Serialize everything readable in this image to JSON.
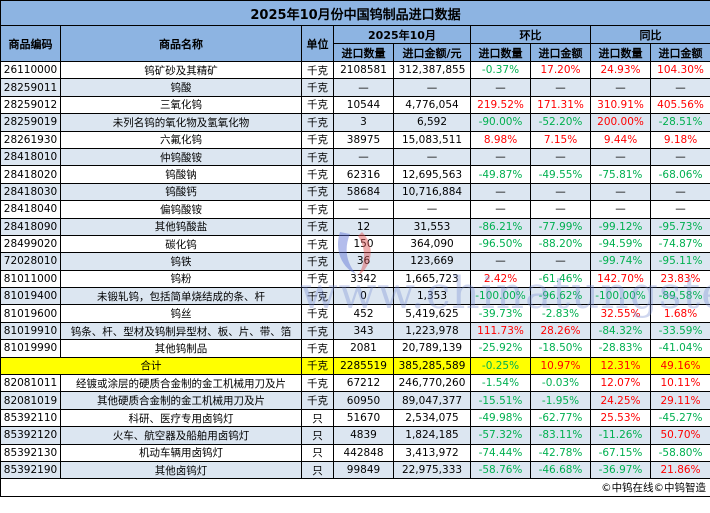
{
  "title": "2025年10月份中国钨制品进口数据",
  "headers": {
    "code": "商品编码",
    "name": "商品名称",
    "unit": "单位",
    "period": "2025年10月",
    "mom": "环比",
    "yoy": "同比",
    "qty": "进口数量",
    "amount_yuan": "进口金额/元",
    "amount": "进口金额"
  },
  "rows": [
    {
      "code": "26110000",
      "name": "钨矿砂及其精矿",
      "unit": "千克",
      "qty": "2108581",
      "amount": "312,387,855",
      "mom_qty": "-0.37%",
      "mom_amt": "17.20%",
      "yoy_qty": "24.93%",
      "yoy_amt": "104.30%"
    },
    {
      "code": "28259011",
      "name": "钨酸",
      "unit": "千克",
      "qty": "—",
      "amount": "—",
      "mom_qty": "—",
      "mom_amt": "—",
      "yoy_qty": "—",
      "yoy_amt": "—"
    },
    {
      "code": "28259012",
      "name": "三氧化钨",
      "unit": "千克",
      "qty": "10544",
      "amount": "4,776,054",
      "mom_qty": "219.52%",
      "mom_amt": "171.31%",
      "yoy_qty": "310.91%",
      "yoy_amt": "405.56%"
    },
    {
      "code": "28259019",
      "name": "未列名钨的氧化物及氢氧化物",
      "unit": "千克",
      "qty": "3",
      "amount": "6,592",
      "mom_qty": "-90.00%",
      "mom_amt": "-52.20%",
      "yoy_qty": "200.00%",
      "yoy_amt": "-28.51%"
    },
    {
      "code": "28261930",
      "name": "六氟化钨",
      "unit": "千克",
      "qty": "38975",
      "amount": "15,083,511",
      "mom_qty": "8.98%",
      "mom_amt": "7.15%",
      "yoy_qty": "9.44%",
      "yoy_amt": "9.18%"
    },
    {
      "code": "28418010",
      "name": "仲钨酸铵",
      "unit": "千克",
      "qty": "—",
      "amount": "—",
      "mom_qty": "—",
      "mom_amt": "—",
      "yoy_qty": "—",
      "yoy_amt": "—"
    },
    {
      "code": "28418020",
      "name": "钨酸钠",
      "unit": "千克",
      "qty": "62316",
      "amount": "12,695,563",
      "mom_qty": "-49.87%",
      "mom_amt": "-49.55%",
      "yoy_qty": "-75.81%",
      "yoy_amt": "-68.06%"
    },
    {
      "code": "28418030",
      "name": "钨酸钙",
      "unit": "千克",
      "qty": "58684",
      "amount": "10,716,884",
      "mom_qty": "—",
      "mom_amt": "—",
      "yoy_qty": "—",
      "yoy_amt": "—"
    },
    {
      "code": "28418040",
      "name": "偏钨酸铵",
      "unit": "千克",
      "qty": "—",
      "amount": "—",
      "mom_qty": "—",
      "mom_amt": "—",
      "yoy_qty": "—",
      "yoy_amt": "—"
    },
    {
      "code": "28418090",
      "name": "其他钨酸盐",
      "unit": "千克",
      "qty": "12",
      "amount": "31,553",
      "mom_qty": "-86.21%",
      "mom_amt": "-77.99%",
      "yoy_qty": "-99.12%",
      "yoy_amt": "-95.73%"
    },
    {
      "code": "28499020",
      "name": "碳化钨",
      "unit": "千克",
      "qty": "150",
      "amount": "364,090",
      "mom_qty": "-96.50%",
      "mom_amt": "-88.20%",
      "yoy_qty": "-94.59%",
      "yoy_amt": "-74.87%"
    },
    {
      "code": "72028010",
      "name": "钨铁",
      "unit": "千克",
      "qty": "36",
      "amount": "123,669",
      "mom_qty": "—",
      "mom_amt": "—",
      "yoy_qty": "-99.74%",
      "yoy_amt": "-95.11%"
    },
    {
      "code": "81011000",
      "name": "钨粉",
      "unit": "千克",
      "qty": "3342",
      "amount": "1,665,723",
      "mom_qty": "2.42%",
      "mom_amt": "-61.46%",
      "yoy_qty": "142.70%",
      "yoy_amt": "23.83%"
    },
    {
      "code": "81019400",
      "name": "未锻轧钨，包括简单烧结成的条、杆",
      "unit": "千克",
      "qty": "0",
      "amount": "1,353",
      "mom_qty": "-100.00%",
      "mom_amt": "-96.62%",
      "yoy_qty": "-100.00%",
      "yoy_amt": "-89.58%"
    },
    {
      "code": "81019600",
      "name": "钨丝",
      "unit": "千克",
      "qty": "452",
      "amount": "5,419,625",
      "mom_qty": "-39.73%",
      "mom_amt": "-2.83%",
      "yoy_qty": "32.55%",
      "yoy_amt": "1.68%"
    },
    {
      "code": "81019910",
      "name": "钨条、杆、型材及钨制异型材、板、片、带、箔",
      "unit": "千克",
      "qty": "343",
      "amount": "1,223,978",
      "mom_qty": "111.73%",
      "mom_amt": "28.26%",
      "yoy_qty": "-84.32%",
      "yoy_amt": "-33.59%"
    },
    {
      "code": "81019990",
      "name": "其他钨制品",
      "unit": "千克",
      "qty": "2081",
      "amount": "20,789,139",
      "mom_qty": "-25.92%",
      "mom_amt": "-18.50%",
      "yoy_qty": "-28.83%",
      "yoy_amt": "-41.04%"
    },
    {
      "code": "",
      "name": "合计",
      "unit": "千克",
      "qty": "2285519",
      "amount": "385,285,589",
      "mom_qty": "-0.25%",
      "mom_amt": "10.97%",
      "yoy_qty": "12.31%",
      "yoy_amt": "49.16%",
      "total": true
    },
    {
      "code": "82081011",
      "name": "经镀或涂层的硬质合金制的金工机械用刀及片",
      "unit": "千克",
      "qty": "67212",
      "amount": "246,770,260",
      "mom_qty": "-1.54%",
      "mom_amt": "-0.03%",
      "yoy_qty": "12.07%",
      "yoy_amt": "10.11%"
    },
    {
      "code": "82081019",
      "name": "其他硬质合金制的金工机械用刀及片",
      "unit": "千克",
      "qty": "60950",
      "amount": "89,047,377",
      "mom_qty": "-15.51%",
      "mom_amt": "-1.95%",
      "yoy_qty": "24.25%",
      "yoy_amt": "29.11%"
    },
    {
      "code": "85392110",
      "name": "科研、医疗专用卤钨灯",
      "unit": "只",
      "qty": "51670",
      "amount": "2,534,075",
      "mom_qty": "-49.98%",
      "mom_amt": "-62.77%",
      "yoy_qty": "25.53%",
      "yoy_amt": "-45.27%"
    },
    {
      "code": "85392120",
      "name": "火车、航空器及船舶用卤钨灯",
      "unit": "只",
      "qty": "4839",
      "amount": "1,824,185",
      "mom_qty": "-57.32%",
      "mom_amt": "-83.11%",
      "yoy_qty": "-11.26%",
      "yoy_amt": "50.70%"
    },
    {
      "code": "85392130",
      "name": "机动车辆用卤钨灯",
      "unit": "只",
      "qty": "442848",
      "amount": "3,413,972",
      "mom_qty": "-74.44%",
      "mom_amt": "-42.78%",
      "yoy_qty": "-67.15%",
      "yoy_amt": "-58.80%"
    },
    {
      "code": "85392190",
      "name": "其他卤钨灯",
      "unit": "只",
      "qty": "99849",
      "amount": "22,975,333",
      "mom_qty": "-58.76%",
      "mom_amt": "-46.68%",
      "yoy_qty": "-36.97%",
      "yoy_amt": "21.86%"
    }
  ],
  "footer": "©中钨在线©中钨智造",
  "watermark": "www.chinatungsten.com",
  "logo_text": "CTIMS",
  "colors": {
    "header": "#8db4e2",
    "alt_row": "#dce6f1",
    "total_row": "#ffff00",
    "increase": "#ff0000",
    "decrease": "#00b050"
  }
}
